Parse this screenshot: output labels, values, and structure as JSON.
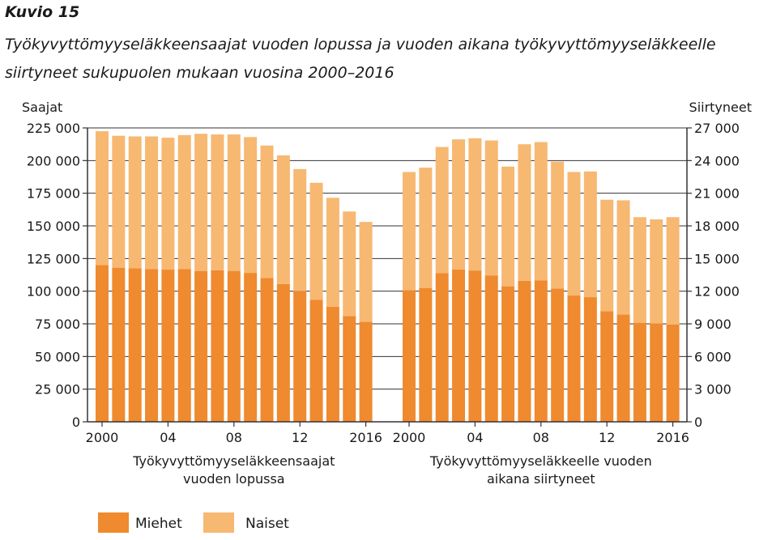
{
  "figure": {
    "number": "Kuvio 15",
    "title": "Työkyvyttömyyseläkkeensaajat vuoden lopussa ja vuoden aikana työkyvyttömyyseläkkeelle siirtyneet sukupuolen mukaan vuosina 2000–2016"
  },
  "colors": {
    "miehet": "#ef8a2e",
    "naiset": "#f7b872",
    "axis": "#333333",
    "grid": "#333333"
  },
  "chart_data": {
    "type": "bar",
    "stacked": true,
    "grid": true,
    "legend_position": "bottom-left",
    "left_axis": {
      "label": "Saajat",
      "ylim": [
        0,
        225000
      ],
      "ticks": [
        0,
        25000,
        50000,
        75000,
        100000,
        125000,
        150000,
        175000,
        200000,
        225000
      ],
      "tick_labels": [
        "0",
        "25 000",
        "50 000",
        "75 000",
        "100 000",
        "125 000",
        "150 000",
        "175 000",
        "200 000",
        "225 000"
      ]
    },
    "right_axis": {
      "label": "Siirtyneet",
      "ylim": [
        0,
        27000
      ],
      "ticks": [
        0,
        3000,
        6000,
        9000,
        12000,
        15000,
        18000,
        21000,
        24000,
        27000
      ],
      "tick_labels": [
        "0",
        "3 000",
        "6 000",
        "9 000",
        "12 000",
        "15 000",
        "18 000",
        "21 000",
        "24 000",
        "27 000"
      ]
    },
    "x_tick_labels": [
      "2000",
      "04",
      "08",
      "12",
      "2016"
    ],
    "legend": [
      "Miehet",
      "Naiset"
    ],
    "panels": [
      {
        "name": "Työkyvyttömyyseläkkeensaajat vuoden lopussa",
        "axis": "left",
        "x": [
          2000,
          2001,
          2002,
          2003,
          2004,
          2005,
          2006,
          2007,
          2008,
          2009,
          2010,
          2011,
          2012,
          2013,
          2014,
          2015,
          2016
        ],
        "series": [
          {
            "name": "Miehet",
            "values": [
              120000,
              118000,
              117500,
              117000,
              116500,
              117000,
              115500,
              116000,
              115500,
              114000,
              110000,
              105500,
              100000,
              93500,
              88000,
              81000,
              76500
            ]
          },
          {
            "name": "Naiset",
            "values": [
              102500,
              101000,
              101000,
              101500,
              101000,
              102500,
              105000,
              104000,
              104500,
              104000,
              101500,
              98500,
              93500,
              89500,
              83500,
              80000,
              76500
            ]
          }
        ]
      },
      {
        "name": "Työkyvyttömyyseläkkeelle vuoden aikana siirtyneet",
        "axis": "right",
        "x": [
          2000,
          2001,
          2002,
          2003,
          2004,
          2005,
          2006,
          2007,
          2008,
          2009,
          2010,
          2011,
          2012,
          2013,
          2014,
          2015,
          2016
        ],
        "series": [
          {
            "name": "Miehet",
            "values": [
              12100,
              12300,
              13650,
              14000,
              13900,
              13450,
              12450,
              12950,
              13000,
              12250,
              11600,
              11450,
              10150,
              9850,
              9100,
              9050,
              8950
            ]
          },
          {
            "name": "Naiset",
            "values": [
              10850,
              11050,
              11600,
              11950,
              12150,
              12400,
              11000,
              12550,
              12700,
              11650,
              11350,
              11550,
              10250,
              10500,
              9700,
              9550,
              9850
            ]
          }
        ]
      }
    ],
    "panel_labels": [
      [
        "Työkyvyttömyyseläkkeensaajat",
        "vuoden lopussa"
      ],
      [
        "Työkyvyttömyyseläkkeelle vuoden",
        "aikana siirtyneet"
      ]
    ]
  }
}
